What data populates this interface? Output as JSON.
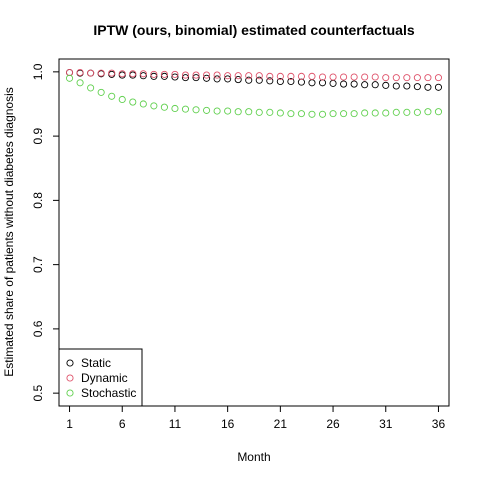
{
  "chart_data": {
    "type": "scatter",
    "title": "IPTW (ours, binomial) estimated counterfactuals",
    "xlabel": "Month",
    "ylabel": "Estimated share of patients without diabetes diagnosis",
    "xlim": [
      0,
      37
    ],
    "ylim": [
      0.48,
      1.02
    ],
    "xticks": [
      1,
      6,
      11,
      16,
      21,
      26,
      31,
      36
    ],
    "yticks": [
      0.5,
      0.6,
      0.7,
      0.8,
      0.9,
      1.0
    ],
    "ytick_labels": [
      "0.5",
      "0.6",
      "0.7",
      "0.8",
      "0.9",
      "1.0"
    ],
    "marker": "open-circle",
    "legend_position": "bottom-left",
    "x": [
      1,
      2,
      3,
      4,
      5,
      6,
      7,
      8,
      9,
      10,
      11,
      12,
      13,
      14,
      15,
      16,
      17,
      18,
      19,
      20,
      21,
      22,
      23,
      24,
      25,
      26,
      27,
      28,
      29,
      30,
      31,
      32,
      33,
      34,
      35,
      36
    ],
    "series": [
      {
        "name": "Static",
        "color": "#000000",
        "values": [
          0.999,
          0.998,
          0.998,
          0.997,
          0.996,
          0.995,
          0.995,
          0.994,
          0.993,
          0.993,
          0.992,
          0.991,
          0.991,
          0.99,
          0.989,
          0.989,
          0.988,
          0.987,
          0.987,
          0.986,
          0.985,
          0.985,
          0.984,
          0.983,
          0.983,
          0.982,
          0.981,
          0.981,
          0.98,
          0.98,
          0.979,
          0.978,
          0.978,
          0.977,
          0.976,
          0.976
        ]
      },
      {
        "name": "Dynamic",
        "color": "#DF536B",
        "values": [
          0.999,
          0.999,
          0.998,
          0.998,
          0.998,
          0.997,
          0.997,
          0.997,
          0.996,
          0.996,
          0.996,
          0.995,
          0.995,
          0.995,
          0.995,
          0.994,
          0.994,
          0.994,
          0.994,
          0.993,
          0.993,
          0.993,
          0.993,
          0.993,
          0.992,
          0.992,
          0.992,
          0.992,
          0.992,
          0.992,
          0.991,
          0.991,
          0.991,
          0.991,
          0.991,
          0.991
        ]
      },
      {
        "name": "Stochastic",
        "color": "#61D04F",
        "values": [
          0.99,
          0.983,
          0.975,
          0.968,
          0.962,
          0.957,
          0.953,
          0.95,
          0.947,
          0.945,
          0.943,
          0.942,
          0.941,
          0.94,
          0.939,
          0.939,
          0.938,
          0.938,
          0.937,
          0.937,
          0.936,
          0.935,
          0.935,
          0.934,
          0.934,
          0.935,
          0.935,
          0.935,
          0.936,
          0.936,
          0.936,
          0.937,
          0.937,
          0.937,
          0.938,
          0.938
        ]
      }
    ]
  }
}
